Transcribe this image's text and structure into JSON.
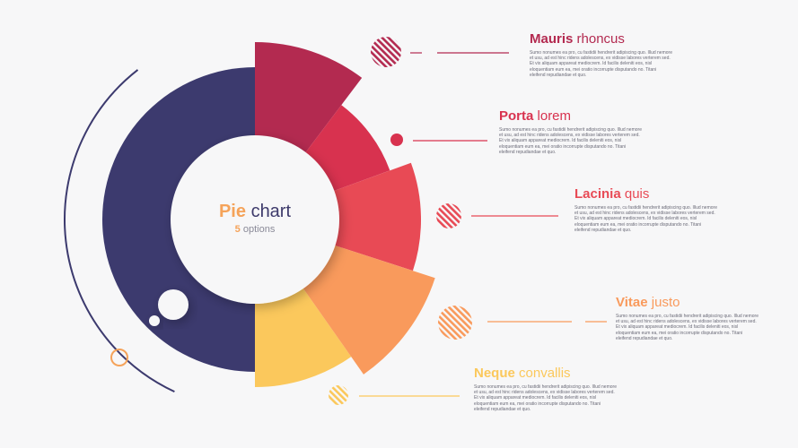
{
  "center": {
    "title_accent": "Pie",
    "title_rest": "chart",
    "subtitle_accent": "5",
    "subtitle_rest": "options"
  },
  "body_text": "Sumo nonumes ea pro, cu fastidii hendrerit adipiscing quo. Illud nemore et usu, ad est hinc ridens adolescens, ex vidisse labores verterem sed. Et vix aliquam appareat mediocrem. Id facilis deleniti eos, nisl eloquentiam eum ea, mei oratio incorrupte disputando no. Titani eleifend repudiandae et quo.",
  "options": [
    {
      "bold": "Mauris",
      "rest": "rhoncus",
      "color": "#b32a50"
    },
    {
      "bold": "Porta",
      "rest": "lorem",
      "color": "#d8324f"
    },
    {
      "bold": "Lacinia",
      "rest": "quis",
      "color": "#e84a55"
    },
    {
      "bold": "Vitae",
      "rest": "justo",
      "color": "#f99a5c"
    },
    {
      "bold": "Neque",
      "rest": "convallis",
      "color": "#fbc85c"
    }
  ],
  "colors": {
    "base": "#3c3a6e",
    "accent": "#f5a35a"
  }
}
